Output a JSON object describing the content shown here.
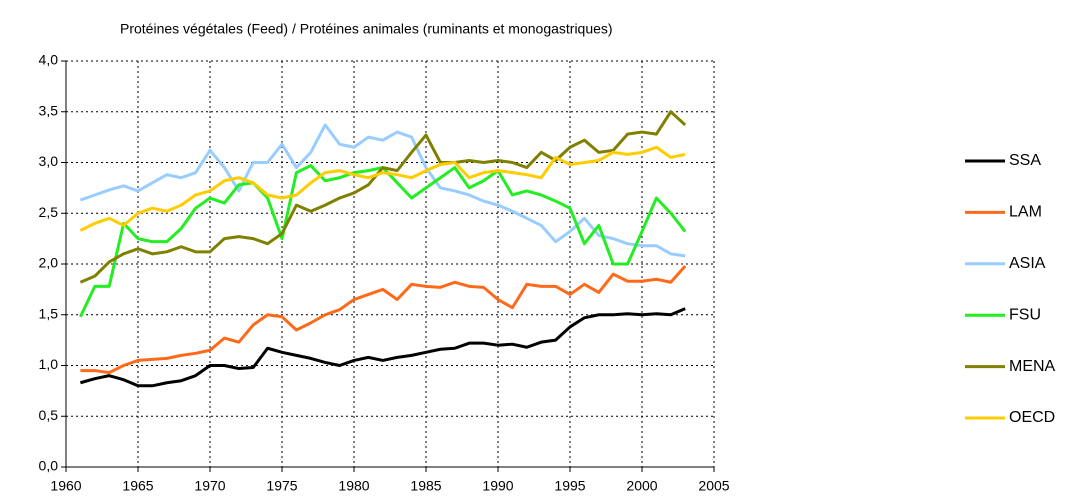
{
  "chart_data": {
    "type": "line",
    "title": "Protéines végétales (Feed) / Protéines animales (ruminants et monogastriques)",
    "x": [
      1961,
      1962,
      1963,
      1964,
      1965,
      1966,
      1967,
      1968,
      1969,
      1970,
      1971,
      1972,
      1973,
      1974,
      1975,
      1976,
      1977,
      1978,
      1979,
      1980,
      1981,
      1982,
      1983,
      1984,
      1985,
      1986,
      1987,
      1988,
      1989,
      1990,
      1991,
      1992,
      1993,
      1994,
      1995,
      1996,
      1997,
      1998,
      1999,
      2000,
      2001,
      2002,
      2003
    ],
    "xlim": [
      1960,
      2005
    ],
    "xticks": [
      1960,
      1965,
      1970,
      1975,
      1980,
      1985,
      1990,
      1995,
      2000,
      2005
    ],
    "ylim": [
      0,
      4
    ],
    "yticks": [
      {
        "value": 0,
        "label": "0,0"
      },
      {
        "value": 0.5,
        "label": "0,5"
      },
      {
        "value": 1,
        "label": "1,0"
      },
      {
        "value": 1.5,
        "label": "1,5"
      },
      {
        "value": 2,
        "label": "2,0"
      },
      {
        "value": 2.5,
        "label": "2,5"
      },
      {
        "value": 3,
        "label": "3,0"
      },
      {
        "value": 3.5,
        "label": "3,5"
      },
      {
        "value": 4,
        "label": "4,0"
      }
    ],
    "grid": true,
    "legend": "right",
    "series": [
      {
        "name": "SSA",
        "color": "#000000",
        "values": [
          0.83,
          0.87,
          0.9,
          0.86,
          0.8,
          0.8,
          0.83,
          0.85,
          0.9,
          1.0,
          1.0,
          0.97,
          0.98,
          1.17,
          1.13,
          1.1,
          1.07,
          1.03,
          1.0,
          1.05,
          1.08,
          1.05,
          1.08,
          1.1,
          1.13,
          1.16,
          1.17,
          1.22,
          1.22,
          1.2,
          1.21,
          1.18,
          1.23,
          1.25,
          1.38,
          1.47,
          1.5,
          1.5,
          1.51,
          1.5,
          1.51,
          1.5,
          1.56
        ]
      },
      {
        "name": "LAM",
        "color": "#ff6a1a",
        "values": [
          0.95,
          0.95,
          0.93,
          1.0,
          1.05,
          1.06,
          1.07,
          1.1,
          1.12,
          1.15,
          1.27,
          1.23,
          1.4,
          1.5,
          1.48,
          1.35,
          1.42,
          1.5,
          1.55,
          1.65,
          1.7,
          1.75,
          1.65,
          1.8,
          1.78,
          1.77,
          1.82,
          1.78,
          1.77,
          1.65,
          1.57,
          1.8,
          1.78,
          1.78,
          1.7,
          1.8,
          1.72,
          1.9,
          1.83,
          1.83,
          1.85,
          1.82,
          1.98
        ]
      },
      {
        "name": "ASIA",
        "color": "#99ccff",
        "values": [
          2.63,
          2.68,
          2.73,
          2.77,
          2.72,
          2.8,
          2.88,
          2.85,
          2.9,
          3.12,
          2.95,
          2.72,
          3.0,
          3.0,
          3.18,
          2.95,
          3.1,
          3.37,
          3.18,
          3.15,
          3.25,
          3.22,
          3.3,
          3.25,
          2.95,
          2.75,
          2.72,
          2.68,
          2.62,
          2.58,
          2.52,
          2.45,
          2.38,
          2.22,
          2.32,
          2.45,
          2.28,
          2.25,
          2.2,
          2.18,
          2.18,
          2.1,
          2.08
        ]
      },
      {
        "name": "FSU",
        "color": "#22ee22",
        "values": [
          1.48,
          1.78,
          1.78,
          2.4,
          2.25,
          2.22,
          2.22,
          2.35,
          2.55,
          2.65,
          2.6,
          2.78,
          2.8,
          2.65,
          2.25,
          2.9,
          2.97,
          2.82,
          2.85,
          2.9,
          2.92,
          2.95,
          2.8,
          2.65,
          2.75,
          2.85,
          2.95,
          2.75,
          2.82,
          2.92,
          2.68,
          2.72,
          2.68,
          2.62,
          2.55,
          2.2,
          2.38,
          2.0,
          2.0,
          2.32,
          2.65,
          2.5,
          2.32
        ]
      },
      {
        "name": "MENA",
        "color": "#808000",
        "values": [
          1.82,
          1.88,
          2.02,
          2.1,
          2.15,
          2.1,
          2.12,
          2.17,
          2.12,
          2.12,
          2.25,
          2.27,
          2.25,
          2.2,
          2.3,
          2.58,
          2.52,
          2.58,
          2.65,
          2.7,
          2.78,
          2.95,
          2.92,
          3.1,
          3.27,
          3.0,
          3.0,
          3.02,
          3.0,
          3.02,
          3.0,
          2.95,
          3.1,
          3.02,
          3.15,
          3.22,
          3.1,
          3.12,
          3.28,
          3.3,
          3.28,
          3.5,
          3.37
        ]
      },
      {
        "name": "OECD",
        "color": "#ffcc00",
        "values": [
          2.33,
          2.4,
          2.45,
          2.38,
          2.5,
          2.55,
          2.52,
          2.58,
          2.68,
          2.72,
          2.82,
          2.85,
          2.8,
          2.68,
          2.65,
          2.68,
          2.8,
          2.9,
          2.92,
          2.88,
          2.85,
          2.9,
          2.88,
          2.85,
          2.92,
          2.98,
          3.0,
          2.85,
          2.9,
          2.92,
          2.9,
          2.88,
          2.85,
          3.05,
          2.98,
          3.0,
          3.02,
          3.1,
          3.08,
          3.1,
          3.15,
          3.05,
          3.08
        ]
      }
    ]
  }
}
